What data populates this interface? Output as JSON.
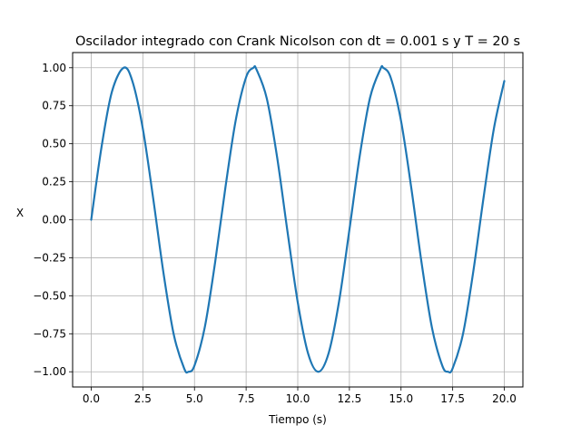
{
  "chart_data": {
    "type": "line",
    "title": "Oscilador integrado con Crank Nicolson con dt = 0.001 s y T = 20 s",
    "xlabel": "Tiempo (s)",
    "ylabel": "X",
    "xlim": [
      -0.9,
      20.9
    ],
    "ylim": [
      -1.1,
      1.1
    ],
    "xticks": [
      0.0,
      2.5,
      5.0,
      7.5,
      10.0,
      12.5,
      15.0,
      17.5,
      20.0
    ],
    "xtick_labels": [
      "0.0",
      "2.5",
      "5.0",
      "7.5",
      "10.0",
      "12.5",
      "15.0",
      "17.5",
      "20.0"
    ],
    "yticks": [
      1.0,
      0.75,
      0.5,
      0.25,
      0.0,
      -0.25,
      -0.5,
      -0.75,
      -1.0
    ],
    "ytick_labels": [
      "1.00",
      "0.75",
      "0.50",
      "0.25",
      "0.00",
      "−0.25",
      "−0.50",
      "−0.75",
      "−1.00"
    ],
    "grid": true,
    "series": [
      {
        "color": "#1f77b4",
        "x": [
          0.0,
          0.5,
          1.0,
          1.5708,
          2.0,
          2.5,
          3.0,
          3.5,
          4.0,
          4.5,
          4.7124,
          5.0,
          5.5,
          6.0,
          6.5,
          7.0,
          7.5,
          7.854,
          8.0,
          8.5,
          9.0,
          9.5,
          10.0,
          10.5,
          10.9956,
          11.5,
          12.0,
          12.5,
          13.0,
          13.5,
          14.0,
          14.1372,
          14.5,
          15.0,
          15.5,
          16.0,
          16.5,
          17.0,
          17.2788,
          17.5,
          18.0,
          18.5,
          19.0,
          19.5,
          20.0
        ],
        "y": [
          0.0,
          0.479,
          0.841,
          1.0,
          0.909,
          0.598,
          0.141,
          -0.351,
          -0.757,
          -0.978,
          -1.0,
          -0.959,
          -0.706,
          -0.279,
          0.215,
          0.657,
          0.938,
          1.0,
          0.989,
          0.798,
          0.412,
          -0.075,
          -0.544,
          -0.88,
          -1.0,
          -0.875,
          -0.537,
          -0.066,
          0.42,
          0.803,
          0.991,
          1.0,
          0.935,
          0.65,
          0.206,
          -0.288,
          -0.712,
          -0.961,
          -1.0,
          -0.977,
          -0.751,
          -0.339,
          0.15,
          0.603,
          0.913
        ]
      }
    ]
  }
}
